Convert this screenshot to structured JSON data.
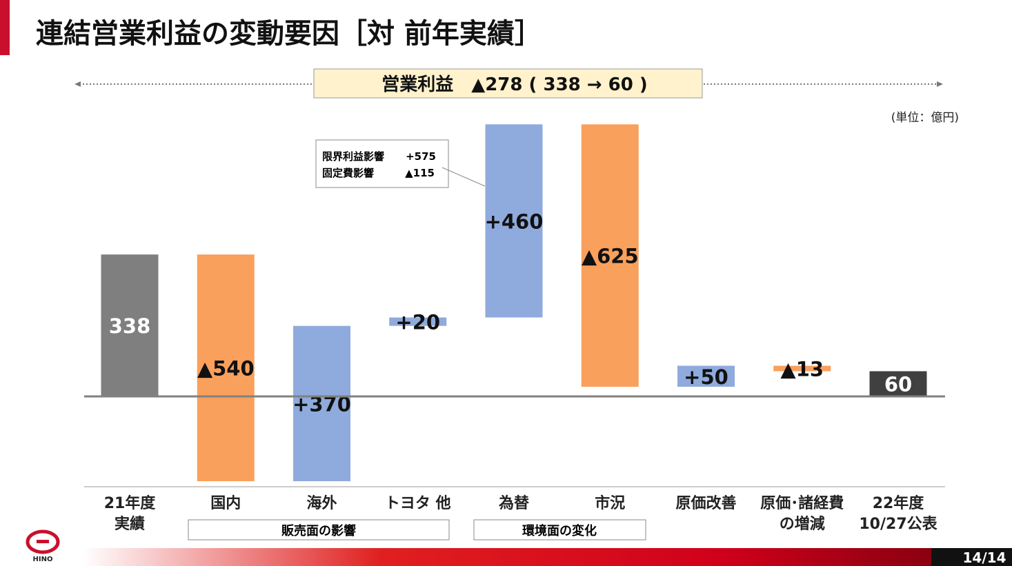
{
  "header": {
    "title": "連結営業利益の変動要因［対 前年実績］",
    "summary": "営業利益　▲278 ( 338 → 60 )",
    "unit": "(単位：億円)",
    "page": "14/14",
    "logo": "HINO"
  },
  "chart_data": {
    "type": "waterfall",
    "categories": [
      "21年度\n実績",
      "国内",
      "海外",
      "トヨタ 他",
      "為替",
      "市況",
      "原価改善",
      "原価･諸経費\nの増減",
      "22年度\n10/27公表"
    ],
    "values": [
      338,
      -540,
      370,
      20,
      460,
      -625,
      50,
      -13,
      60
    ],
    "value_labels": [
      "338",
      "▲540",
      "+370",
      "+20",
      "+460",
      "▲625",
      "+50",
      "▲13",
      "60"
    ],
    "measure": [
      "total",
      "relative",
      "relative",
      "relative",
      "relative",
      "relative",
      "relative",
      "relative",
      "total"
    ],
    "colors": [
      "#7f7f7f",
      "#f9a05c",
      "#8faadc",
      "#8faadc",
      "#8faadc",
      "#f9a05c",
      "#8faadc",
      "#f9a05c",
      "#404040"
    ],
    "groups": [
      "販売面の影響",
      "環境面の変化"
    ],
    "callout": [
      [
        "限界利益影響",
        "+575"
      ],
      [
        "固定費影響",
        "▲115"
      ]
    ]
  }
}
